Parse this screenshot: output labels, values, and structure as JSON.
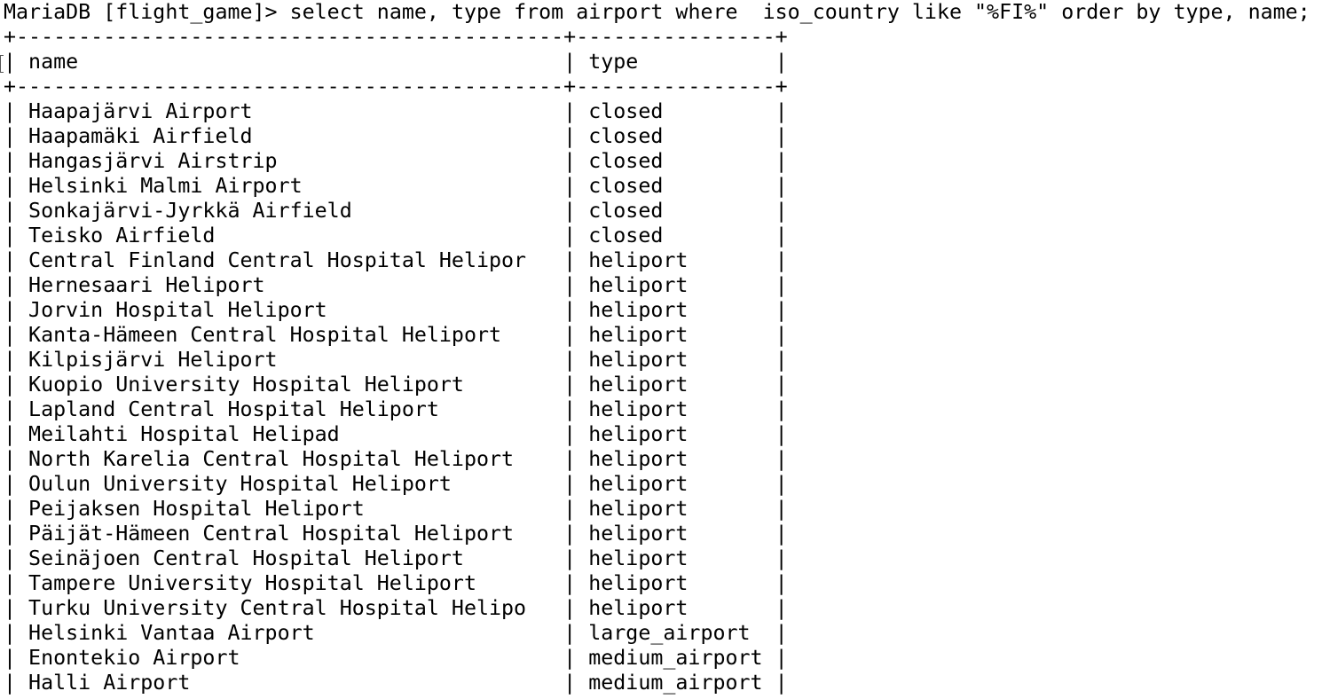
{
  "terminal": {
    "prompt": "MariaDB [flight_game]> ",
    "command": "select name, type from airport where  iso_country like \"%FI%\" order by type, name;",
    "border": "+--------------------------------------------+----------------+",
    "header": "| name                                       | type           |",
    "rows": [
      "| Haapajärvi Airport                         | closed         |",
      "| Haapamäki Airfield                         | closed         |",
      "| Hangasjärvi Airstrip                       | closed         |",
      "| Helsinki Malmi Airport                     | closed         |",
      "| Sonkajärvi-Jyrkkä Airfield                 | closed         |",
      "| Teisko Airfield                            | closed         |",
      "| Central Finland Central Hospital Helipor   | heliport       |",
      "| Hernesaari Heliport                        | heliport       |",
      "| Jorvin Hospital Heliport                   | heliport       |",
      "| Kanta-Hämeen Central Hospital Heliport     | heliport       |",
      "| Kilpisjärvi Heliport                       | heliport       |",
      "| Kuopio University Hospital Heliport        | heliport       |",
      "| Lapland Central Hospital Heliport          | heliport       |",
      "| Meilahti Hospital Helipad                  | heliport       |",
      "| North Karelia Central Hospital Heliport    | heliport       |",
      "| Oulun University Hospital Heliport         | heliport       |",
      "| Peijaksen Hospital Heliport                | heliport       |",
      "| Päijät-Hämeen Central Hospital Heliport    | heliport       |",
      "| Seinäjoen Central Hospital Heliport        | heliport       |",
      "| Tampere University Hospital Heliport       | heliport       |",
      "| Turku University Central Hospital Helipo   | heliport       |",
      "| Helsinki Vantaa Airport                    | large_airport  |",
      "| Enontekio Airport                          | medium_airport |",
      "| Halli Airport                              | medium_airport |"
    ]
  }
}
